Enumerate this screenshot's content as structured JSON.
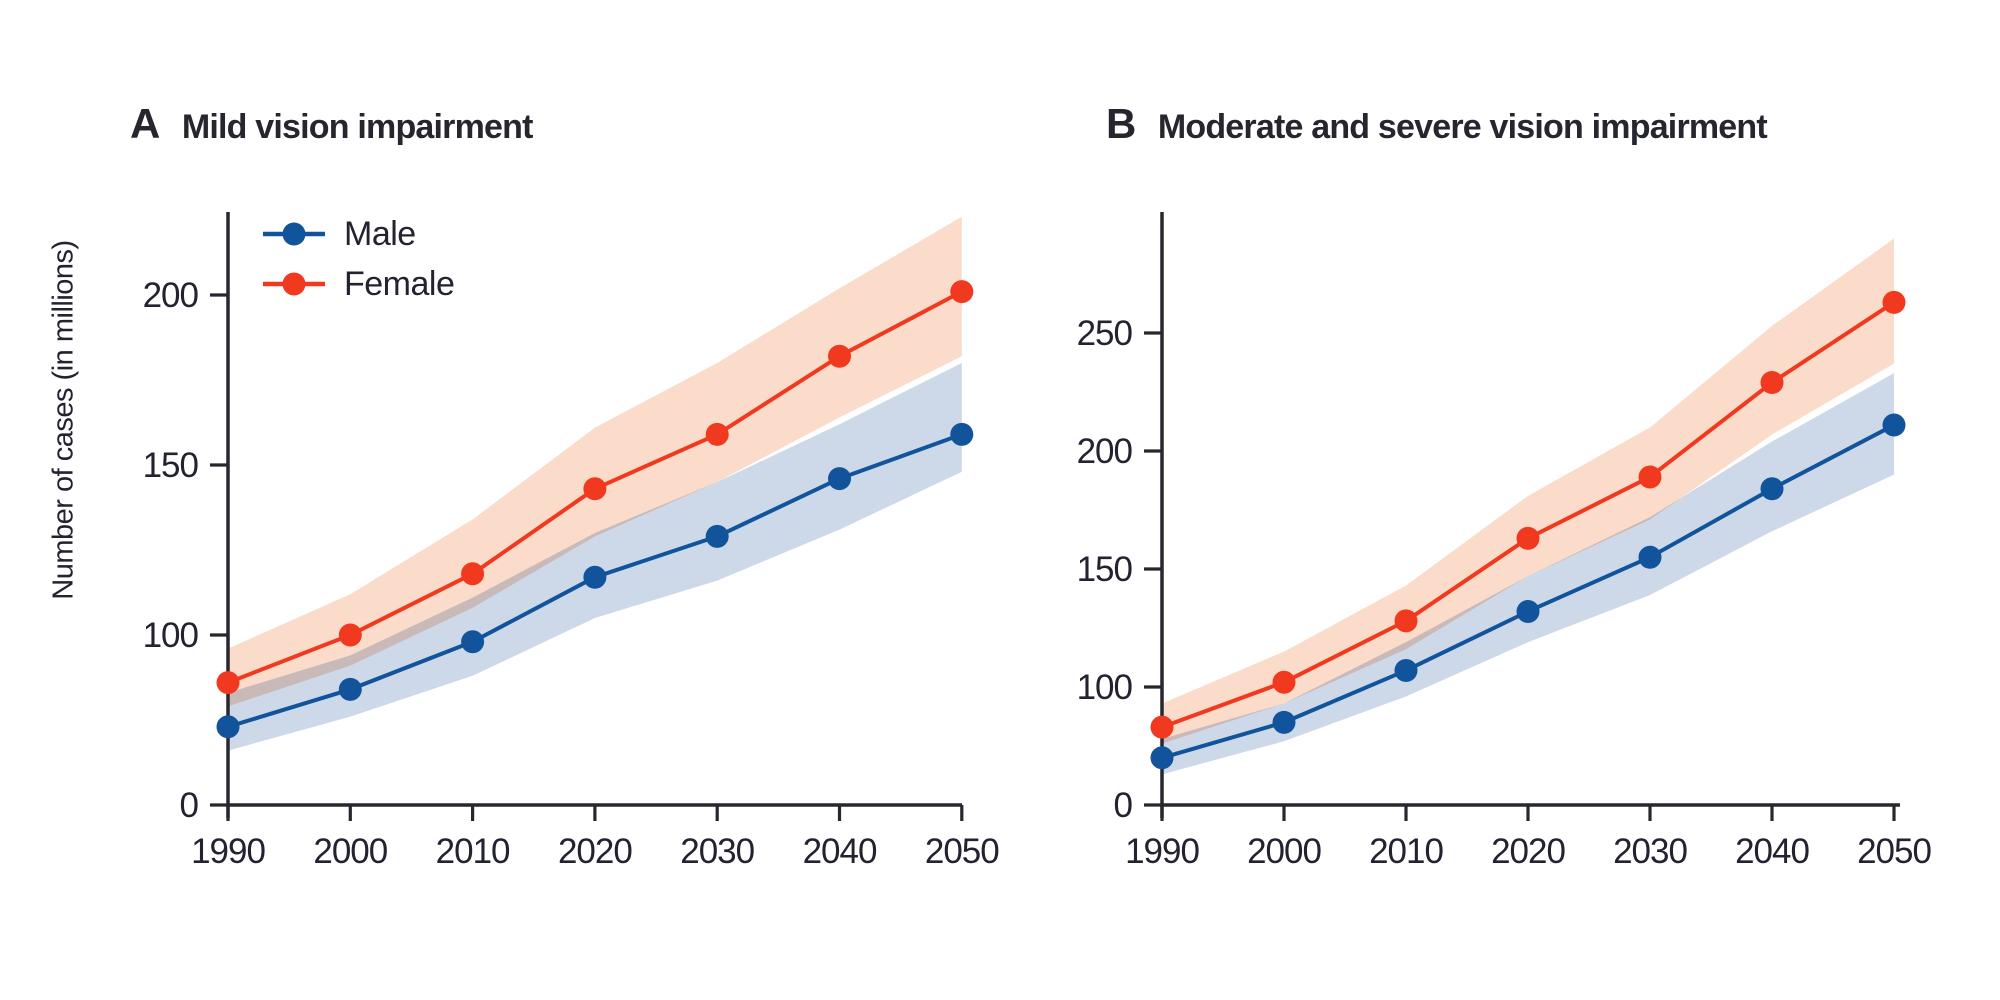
{
  "page": {
    "background": "#ffffff"
  },
  "figure": {
    "y_axis_label": "Number of cases (in millions)",
    "legend": [
      {
        "label": "Male",
        "color": "#12549b"
      },
      {
        "label": "Female",
        "color": "#f0391f"
      }
    ],
    "colors": {
      "male_line": "#12549b",
      "female_line": "#f0391f",
      "male_band": "#cdd8e9",
      "female_band": "#fbdccb",
      "axis": "#28272f",
      "text": "#222230"
    }
  },
  "chart_data": [
    {
      "id": "A",
      "panel_letter": "A",
      "title": "Mild vision impairment",
      "type": "line",
      "xlabel": "",
      "ylabel": "Number of cases (in millions)",
      "x": [
        1990,
        2000,
        2010,
        2020,
        2030,
        2040,
        2050
      ],
      "x_tick_labels": [
        "1990",
        "2000",
        "2010",
        "2020",
        "2030",
        "2040",
        "2050"
      ],
      "y_axis": {
        "ticks": [
          {
            "label": "0",
            "v": 50
          },
          {
            "label": "100",
            "v": 100
          },
          {
            "label": "150",
            "v": 150
          },
          {
            "label": "200",
            "v": 200
          }
        ],
        "axis_truncated_below_100": true,
        "axis_top_value": 224
      },
      "series": [
        {
          "name": "Male",
          "color": "#12549b",
          "band_color": "#cdd8e9",
          "values": [
            73,
            84,
            98,
            117,
            129,
            146,
            159
          ],
          "lower": [
            66,
            76,
            88,
            105,
            116,
            131,
            148
          ],
          "upper": [
            83,
            94,
            111,
            130,
            145,
            162,
            180
          ]
        },
        {
          "name": "Female",
          "color": "#f0391f",
          "band_color": "#fbdccb",
          "values": [
            86,
            100,
            118,
            143,
            159,
            182,
            201
          ],
          "lower": [
            79,
            91,
            108,
            129,
            145,
            164,
            182
          ],
          "upper": [
            96,
            112,
            134,
            161,
            180,
            202,
            223
          ]
        }
      ]
    },
    {
      "id": "B",
      "panel_letter": "B",
      "title": "Moderate and severe vision impairment",
      "type": "line",
      "xlabel": "",
      "ylabel": "",
      "x": [
        1990,
        2000,
        2010,
        2020,
        2030,
        2040,
        2050
      ],
      "x_tick_labels": [
        "1990",
        "2000",
        "2010",
        "2020",
        "2030",
        "2040",
        "2050"
      ],
      "y_axis": {
        "ticks": [
          {
            "label": "0",
            "v": 50
          },
          {
            "label": "100",
            "v": 100
          },
          {
            "label": "150",
            "v": 150
          },
          {
            "label": "200",
            "v": 200
          },
          {
            "label": "250",
            "v": 250
          }
        ],
        "axis_truncated_below_100": true,
        "axis_top_value": 301
      },
      "series": [
        {
          "name": "Male",
          "color": "#12549b",
          "band_color": "#cdd8e9",
          "values": [
            70,
            85,
            107,
            132,
            155,
            184,
            211
          ],
          "lower": [
            63,
            77,
            96,
            119,
            139,
            166,
            190
          ],
          "upper": [
            78,
            93,
            119,
            147,
            172,
            204,
            233
          ]
        },
        {
          "name": "Female",
          "color": "#f0391f",
          "band_color": "#fbdccb",
          "values": [
            83,
            102,
            128,
            163,
            189,
            229,
            263
          ],
          "lower": [
            76,
            93,
            116,
            147,
            171,
            207,
            237
          ],
          "upper": [
            93,
            115,
            143,
            181,
            210,
            253,
            290
          ]
        }
      ]
    }
  ]
}
